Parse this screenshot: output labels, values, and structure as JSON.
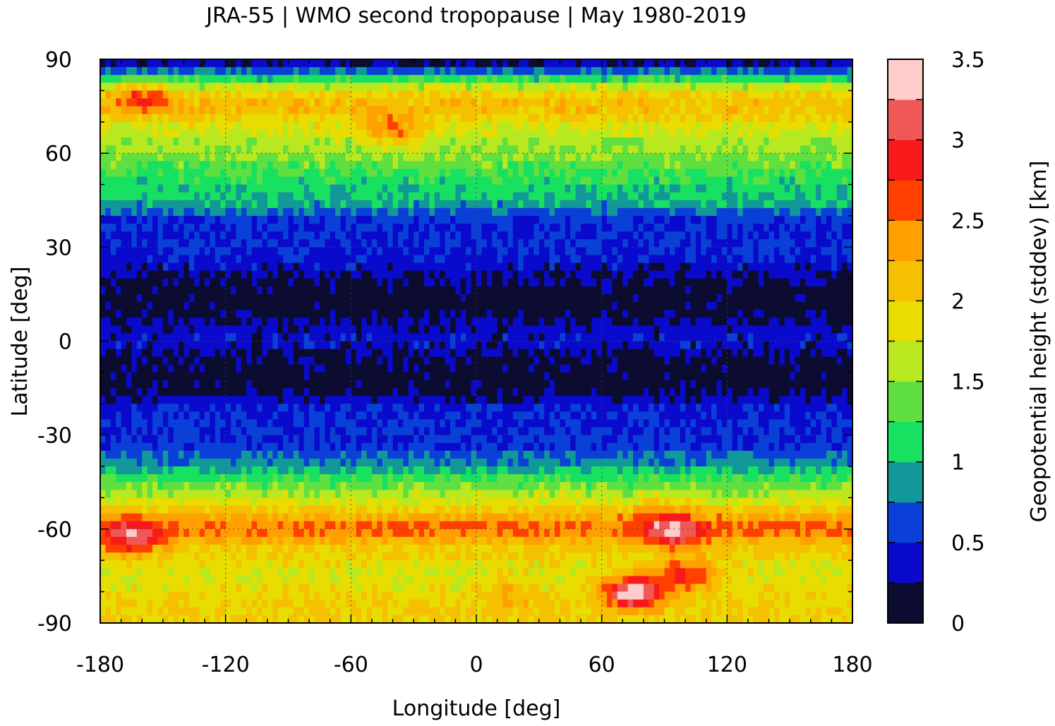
{
  "chart_data": {
    "type": "heatmap",
    "title": "JRA-55 | WMO second tropopause | May 1980-2019",
    "xlabel": "Longitude [deg]",
    "ylabel": "Latitude [deg]",
    "xlim": [
      -180,
      180
    ],
    "ylim": [
      -90,
      90
    ],
    "x_ticks": [
      "-180",
      "-120",
      "-60",
      "0",
      "60",
      "120",
      "180"
    ],
    "y_ticks": [
      "90",
      "60",
      "30",
      "0",
      "-30",
      "-60",
      "-90"
    ],
    "x_tick_values": [
      -180,
      -120,
      -60,
      0,
      60,
      120,
      180
    ],
    "y_tick_values": [
      90,
      60,
      30,
      0,
      -30,
      -60,
      -90
    ],
    "grid": true,
    "colorbar": {
      "label": "Geopotential height (stddev) [km]",
      "range": [
        0,
        3.5
      ],
      "tick_labels": [
        "3.5",
        "3",
        "2.5",
        "2",
        "1.5",
        "1",
        "0.5",
        "0"
      ],
      "tick_values": [
        3.5,
        3,
        2.5,
        2,
        1.5,
        1,
        0.5,
        0
      ],
      "levels": [
        0,
        0.25,
        0.5,
        0.75,
        1,
        1.25,
        1.5,
        1.75,
        2,
        2.25,
        2.5,
        2.75,
        3,
        3.25,
        3.5
      ],
      "colors": [
        "#0c0c30",
        "#0a0acc",
        "#0a40d8",
        "#129898",
        "#18e060",
        "#60e040",
        "#b8e820",
        "#e8dc00",
        "#f4c000",
        "#ffa000",
        "#ff4000",
        "#f81a1a",
        "#f05858",
        "#ffcccc"
      ]
    },
    "zonal_profile": {
      "description_lat": [
        90,
        85,
        80,
        75,
        70,
        65,
        60,
        55,
        50,
        45,
        40,
        35,
        30,
        25,
        20,
        15,
        10,
        5,
        0,
        -5,
        -10,
        -15,
        -20,
        -25,
        -30,
        -35,
        -40,
        -45,
        -50,
        -55,
        -60,
        -65,
        -70,
        -75,
        -80,
        -85,
        -90
      ],
      "stddev_km": [
        0.1,
        0.9,
        1.9,
        2.2,
        1.9,
        1.6,
        1.5,
        1.3,
        1.1,
        1.0,
        0.6,
        0.5,
        0.5,
        0.4,
        0.2,
        0.1,
        0.1,
        0.3,
        0.4,
        0.2,
        0.1,
        0.1,
        0.4,
        0.5,
        0.5,
        0.6,
        0.9,
        1.3,
        1.7,
        2.2,
        2.6,
        2.1,
        1.9,
        1.8,
        1.9,
        2.0,
        2.0
      ]
    },
    "features": [
      {
        "lon": -165,
        "lat": -63,
        "stddev_km": 3.3
      },
      {
        "lon": 95,
        "lat": -62,
        "stddev_km": 3.2
      },
      {
        "lon": 75,
        "lat": -80,
        "stddev_km": 3.5
      },
      {
        "lon": 100,
        "lat": -75,
        "stddev_km": 2.8
      },
      {
        "lon": 90,
        "lat": -57,
        "stddev_km": 2.7
      },
      {
        "lon": 15,
        "lat": -80,
        "stddev_km": 2.2
      },
      {
        "lon": -60,
        "lat": -45,
        "stddev_km": 1.2
      },
      {
        "lon": -160,
        "lat": 78,
        "stddev_km": 2.7
      },
      {
        "lon": -40,
        "lat": 67,
        "stddev_km": 2.5
      }
    ]
  }
}
